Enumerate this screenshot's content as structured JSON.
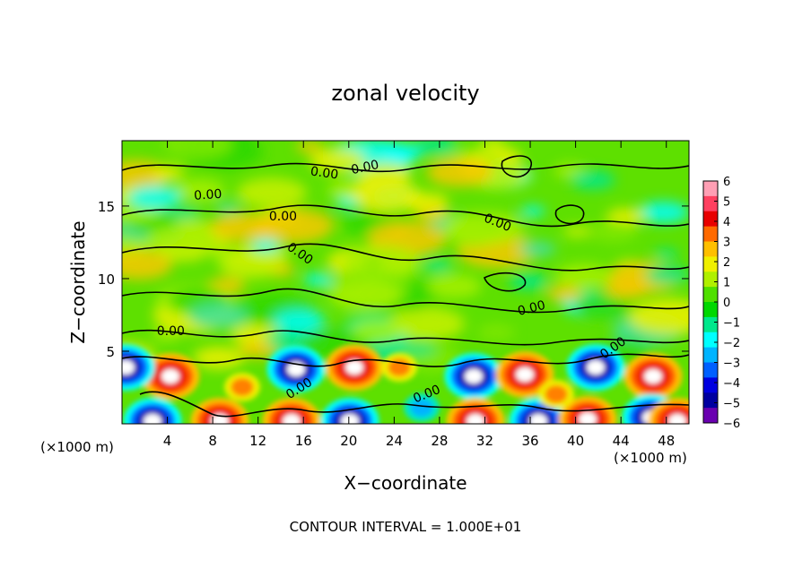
{
  "chart_data": {
    "type": "heatmap",
    "title": "zonal velocity",
    "xlabel": "X−coordinate",
    "ylabel": "Z−coordinate",
    "x_unit_label": "(×1000 m)",
    "x_unit_label_right": "(×1000 m)",
    "xlim": [
      0,
      50
    ],
    "ylim": [
      0,
      19.5
    ],
    "x_ticks": [
      4,
      8,
      12,
      16,
      20,
      24,
      28,
      32,
      36,
      40,
      44,
      48
    ],
    "y_ticks": [
      5,
      10,
      15
    ],
    "colorbar": {
      "ticks": [
        "6",
        "5",
        "4",
        "3",
        "2",
        "1",
        "0",
        "−1",
        "−2",
        "−3",
        "−4",
        "−5",
        "−6"
      ],
      "colors": [
        "#ff9fb4",
        "#ff4060",
        "#e80000",
        "#ff6a00",
        "#ffbf00",
        "#f0f000",
        "#b0f000",
        "#50e000",
        "#00d800",
        "#00e88c",
        "#00ffff",
        "#00b4ff",
        "#0060ff",
        "#0000e0",
        "#0000a0",
        "#6a00b0"
      ]
    },
    "contour_labels": [
      {
        "text": "0.00",
        "x": 7.6,
        "z": 15.5,
        "angle": -4
      },
      {
        "text": "0.00",
        "x": 14.2,
        "z": 14.0,
        "angle": 0
      },
      {
        "text": "0.00",
        "x": 17.8,
        "z": 17.0,
        "angle": 8
      },
      {
        "text": "0.00",
        "x": 21.5,
        "z": 17.4,
        "angle": -12
      },
      {
        "text": "0.00",
        "x": 33.0,
        "z": 13.6,
        "angle": 22
      },
      {
        "text": "0.00",
        "x": 15.5,
        "z": 11.5,
        "angle": 35
      },
      {
        "text": "0.00",
        "x": 36.2,
        "z": 7.7,
        "angle": -14
      },
      {
        "text": "0.00",
        "x": 4.3,
        "z": 6.1,
        "angle": 0
      },
      {
        "text": "0.00",
        "x": 43.5,
        "z": 5.0,
        "angle": -35
      },
      {
        "text": "0.00",
        "x": 15.8,
        "z": 2.2,
        "angle": -32
      },
      {
        "text": "0.00",
        "x": 27.0,
        "z": 1.8,
        "angle": -22
      }
    ],
    "annotation": "CONTOUR INTERVAL = 1.000E+01"
  }
}
